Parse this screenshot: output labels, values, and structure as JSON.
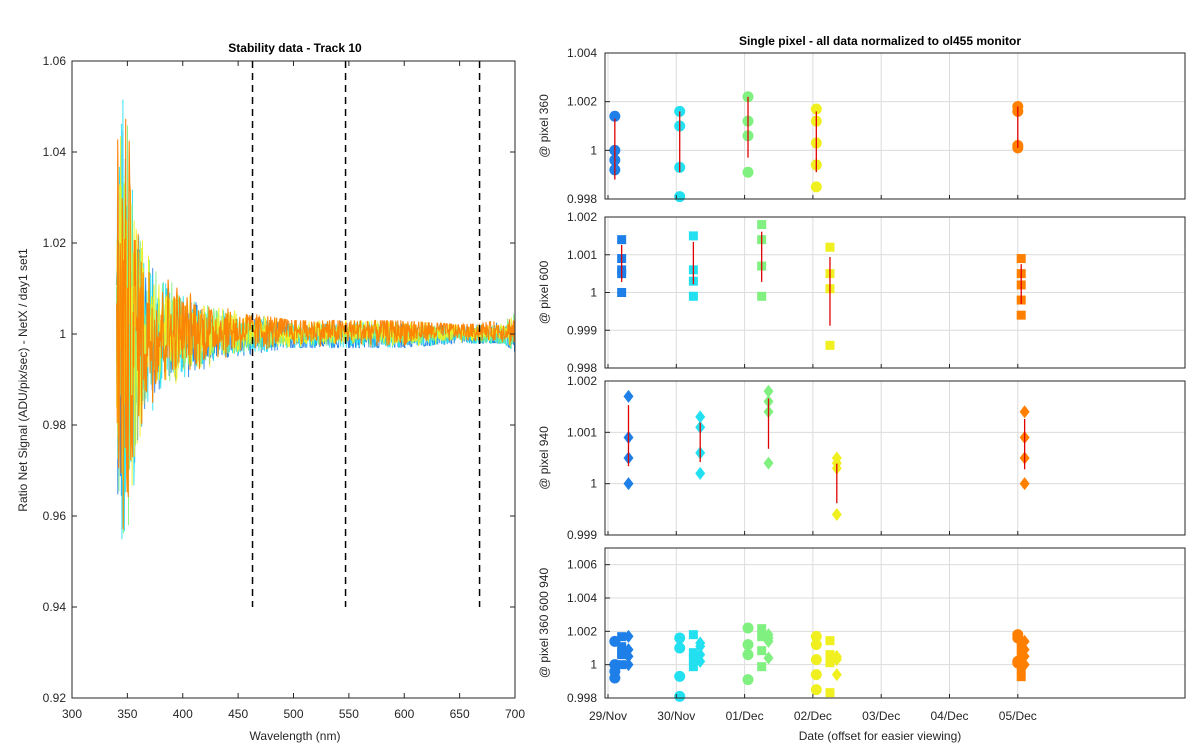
{
  "chart_data": [
    {
      "type": "line",
      "title": "Stability data - Track 10",
      "xlabel": "Wavelength (nm)",
      "ylabel": "Ratio Net Signal (ADU/pix/sec) - NetX / day1 set1",
      "xlim": [
        300,
        700
      ],
      "ylim": [
        0.92,
        1.06
      ],
      "xticks": [
        300,
        350,
        400,
        450,
        500,
        550,
        600,
        650,
        700
      ],
      "yticks": [
        0.92,
        0.94,
        0.96,
        0.98,
        1,
        1.02,
        1.04,
        1.06
      ],
      "ytick_labels": [
        "0.92",
        "0.94",
        "0.96",
        "0.98",
        "1",
        "1.02",
        "1.04",
        "1.06"
      ],
      "series_colors": [
        "#1f7fe8",
        "#22e0f0",
        "#80f080",
        "#f0f020",
        "#ff8000"
      ],
      "spectrum_envelope": {
        "x": [
          340,
          345,
          350,
          355,
          360,
          370,
          380,
          400,
          420,
          450,
          500,
          550,
          600,
          650,
          690,
          700
        ],
        "upper": [
          1.05,
          1.052,
          1.055,
          1.04,
          1.025,
          1.02,
          1.013,
          1.01,
          1.007,
          1.005,
          1.003,
          1.003,
          1.003,
          1.002,
          1.003,
          1.005
        ],
        "lower": [
          0.945,
          0.94,
          0.95,
          0.965,
          0.975,
          0.98,
          0.985,
          0.99,
          0.992,
          0.995,
          0.997,
          0.997,
          0.997,
          0.998,
          0.998,
          0.996
        ]
      },
      "vertical_markers": [
        463,
        547,
        668
      ],
      "vertical_marker_range": [
        0.94,
        1.06
      ],
      "grid": false
    },
    {
      "type": "scatter",
      "title": "Single pixel - all data normalized to ol455 monitor",
      "xlabel": "Date (offset for easier viewing)",
      "categories": [
        "29/Nov",
        "30/Nov",
        "01/Dec",
        "02/Dec",
        "03/Dec",
        "04/Dec",
        "05/Dec"
      ],
      "grid": true,
      "panels": [
        {
          "ylabel": "@ pixel 360",
          "marker": "circle",
          "ylim": [
            0.998,
            1.004
          ],
          "yticks": [
            0.998,
            1,
            1.002,
            1.004
          ],
          "ytick_labels": [
            "0.998",
            "1",
            "1.002",
            "1.004"
          ],
          "series": [
            {
              "date_x": 0.1,
              "color": "#1f7fe8",
              "values": [
                1.0014,
                1.0,
                0.9996,
                0.9992
              ],
              "err": [
                0.9988,
                1.0013
              ]
            },
            {
              "date_x": 1.05,
              "color": "#22e0f0",
              "values": [
                1.0016,
                1.001,
                0.9993,
                0.9981
              ],
              "err": [
                0.9991,
                1.0016
              ]
            },
            {
              "date_x": 2.05,
              "color": "#80f080",
              "values": [
                1.0022,
                1.0012,
                1.0006,
                0.9991
              ],
              "err": [
                0.9997,
                1.0022
              ]
            },
            {
              "date_x": 3.05,
              "color": "#f0f020",
              "values": [
                1.0017,
                1.0012,
                1.0003,
                0.9994,
                0.9985
              ],
              "err": [
                0.9991,
                1.0016
              ]
            },
            {
              "date_x": 6.0,
              "color": "#ff8000",
              "values": [
                1.0018,
                1.0016,
                1.0002,
                1.0001
              ],
              "err": [
                1.0001,
                1.0018
              ]
            }
          ]
        },
        {
          "ylabel": "@ pixel 600",
          "marker": "square",
          "ylim": [
            0.998,
            1.002
          ],
          "yticks": [
            0.998,
            0.999,
            1,
            1.001,
            1.002
          ],
          "ytick_labels": [
            "0.998",
            "0.999",
            "1",
            "1.001",
            "1.002"
          ],
          "series": [
            {
              "date_x": 0.2,
              "color": "#1f7fe8",
              "values": [
                1.0014,
                1.0009,
                1.0006,
                1.0005,
                1.0
              ]
            },
            {
              "date_x": 1.25,
              "color": "#22e0f0",
              "values": [
                1.0015,
                1.0006,
                1.0003,
                0.9999
              ]
            },
            {
              "date_x": 2.25,
              "color": "#80f080",
              "values": [
                1.0018,
                1.0014,
                1.0007,
                0.9999
              ]
            },
            {
              "date_x": 3.25,
              "color": "#f0f020",
              "values": [
                1.0012,
                1.0005,
                1.0001,
                0.9986
              ]
            },
            {
              "date_x": 6.05,
              "color": "#ff8000",
              "values": [
                1.0009,
                1.0005,
                1.0002,
                0.9998,
                0.9994
              ]
            }
          ]
        },
        {
          "ylabel": "@ pixel 940",
          "marker": "diamond",
          "ylim": [
            0.999,
            1.002
          ],
          "yticks": [
            0.999,
            1,
            1.001,
            1.002
          ],
          "ytick_labels": [
            "0.999",
            "1",
            "1.001",
            "1.002"
          ],
          "series": [
            {
              "date_x": 0.3,
              "color": "#1f7fe8",
              "values": [
                1.0017,
                1.0009,
                1.0005,
                1.0
              ]
            },
            {
              "date_x": 1.35,
              "color": "#22e0f0",
              "values": [
                1.0013,
                1.0011,
                1.0006,
                1.0002
              ]
            },
            {
              "date_x": 2.35,
              "color": "#80f080",
              "values": [
                1.0018,
                1.0016,
                1.0014,
                1.0004
              ]
            },
            {
              "date_x": 3.35,
              "color": "#f0f020",
              "values": [
                1.0005,
                1.0004,
                1.0003,
                0.9994
              ]
            },
            {
              "date_x": 6.1,
              "color": "#ff8000",
              "values": [
                1.0014,
                1.0009,
                1.0005,
                1.0
              ]
            }
          ]
        },
        {
          "ylabel": "@ pixel 360  600  940",
          "marker": "combined",
          "ylim": [
            0.998,
            1.007
          ],
          "yticks": [
            0.998,
            1,
            1.002,
            1.004,
            1.006
          ],
          "ytick_labels": [
            "0.998",
            "1",
            "1.002",
            "1.004",
            "1.006"
          ]
        }
      ],
      "error_bar_color": "#e00000"
    }
  ]
}
